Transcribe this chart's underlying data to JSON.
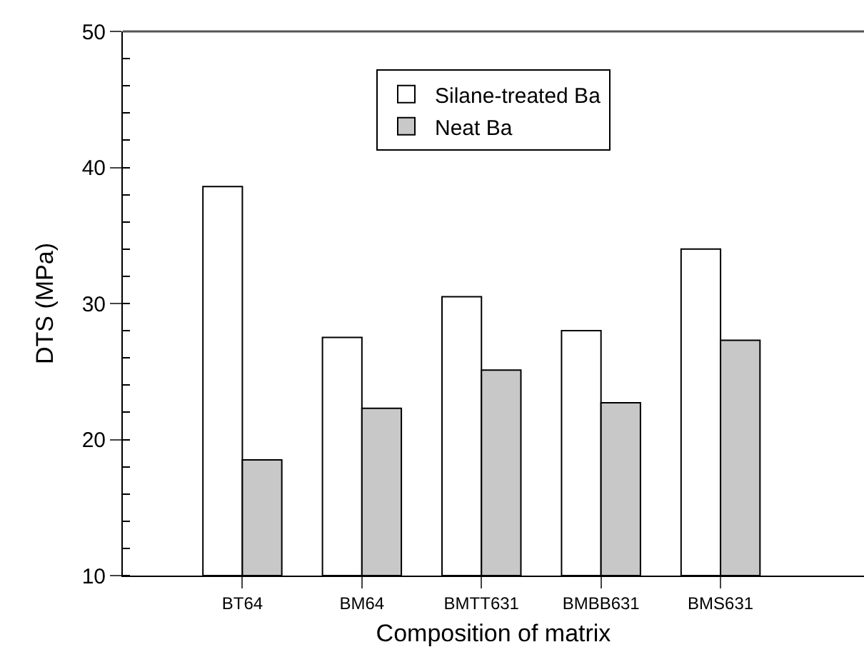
{
  "chart_data": {
    "type": "bar",
    "xlabel": "Composition of matrix",
    "ylabel": "DTS (MPa)",
    "categories": [
      "BT64",
      "BM64",
      "BMTT631",
      "BMBB631",
      "BMS631"
    ],
    "series": [
      {
        "name": "Silane-treated Ba",
        "color": "#ffffff",
        "values": [
          38.6,
          27.5,
          30.5,
          28.0,
          34.0
        ]
      },
      {
        "name": "Neat Ba",
        "color": "#c8c8c8",
        "values": [
          18.5,
          22.3,
          25.1,
          22.7,
          27.3
        ]
      }
    ],
    "ylim": [
      10,
      50
    ],
    "yticks": [
      10,
      20,
      30,
      40,
      50
    ],
    "legend": "top"
  }
}
